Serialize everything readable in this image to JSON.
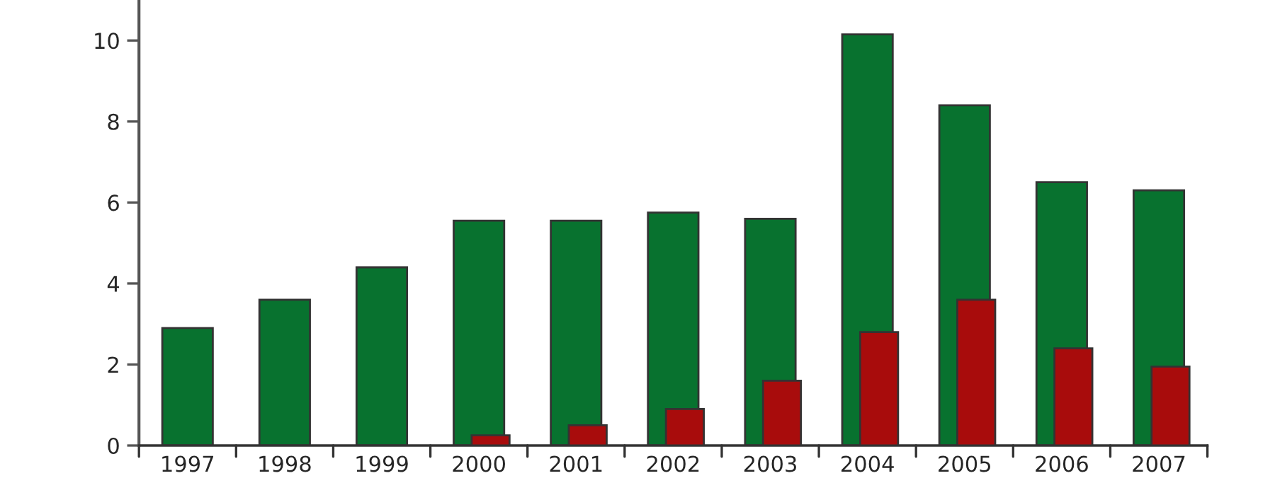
{
  "chart_data": {
    "type": "bar",
    "categories": [
      "1997",
      "1998",
      "1999",
      "2000",
      "2001",
      "2002",
      "2003",
      "2004",
      "2005",
      "2006",
      "2007"
    ],
    "series": [
      {
        "color": "#08722f",
        "values": [
          2.9,
          3.6,
          4.4,
          5.55,
          5.55,
          5.75,
          5.6,
          10.15,
          8.4,
          6.5,
          6.3
        ]
      },
      {
        "color": "#a80c0c",
        "values": [
          null,
          null,
          null,
          0.25,
          0.5,
          0.9,
          1.6,
          2.8,
          3.6,
          2.4,
          1.95
        ]
      }
    ],
    "ylim": [
      0,
      11
    ],
    "yticks": [
      0,
      2,
      4,
      6,
      8,
      10
    ],
    "grid": false
  }
}
